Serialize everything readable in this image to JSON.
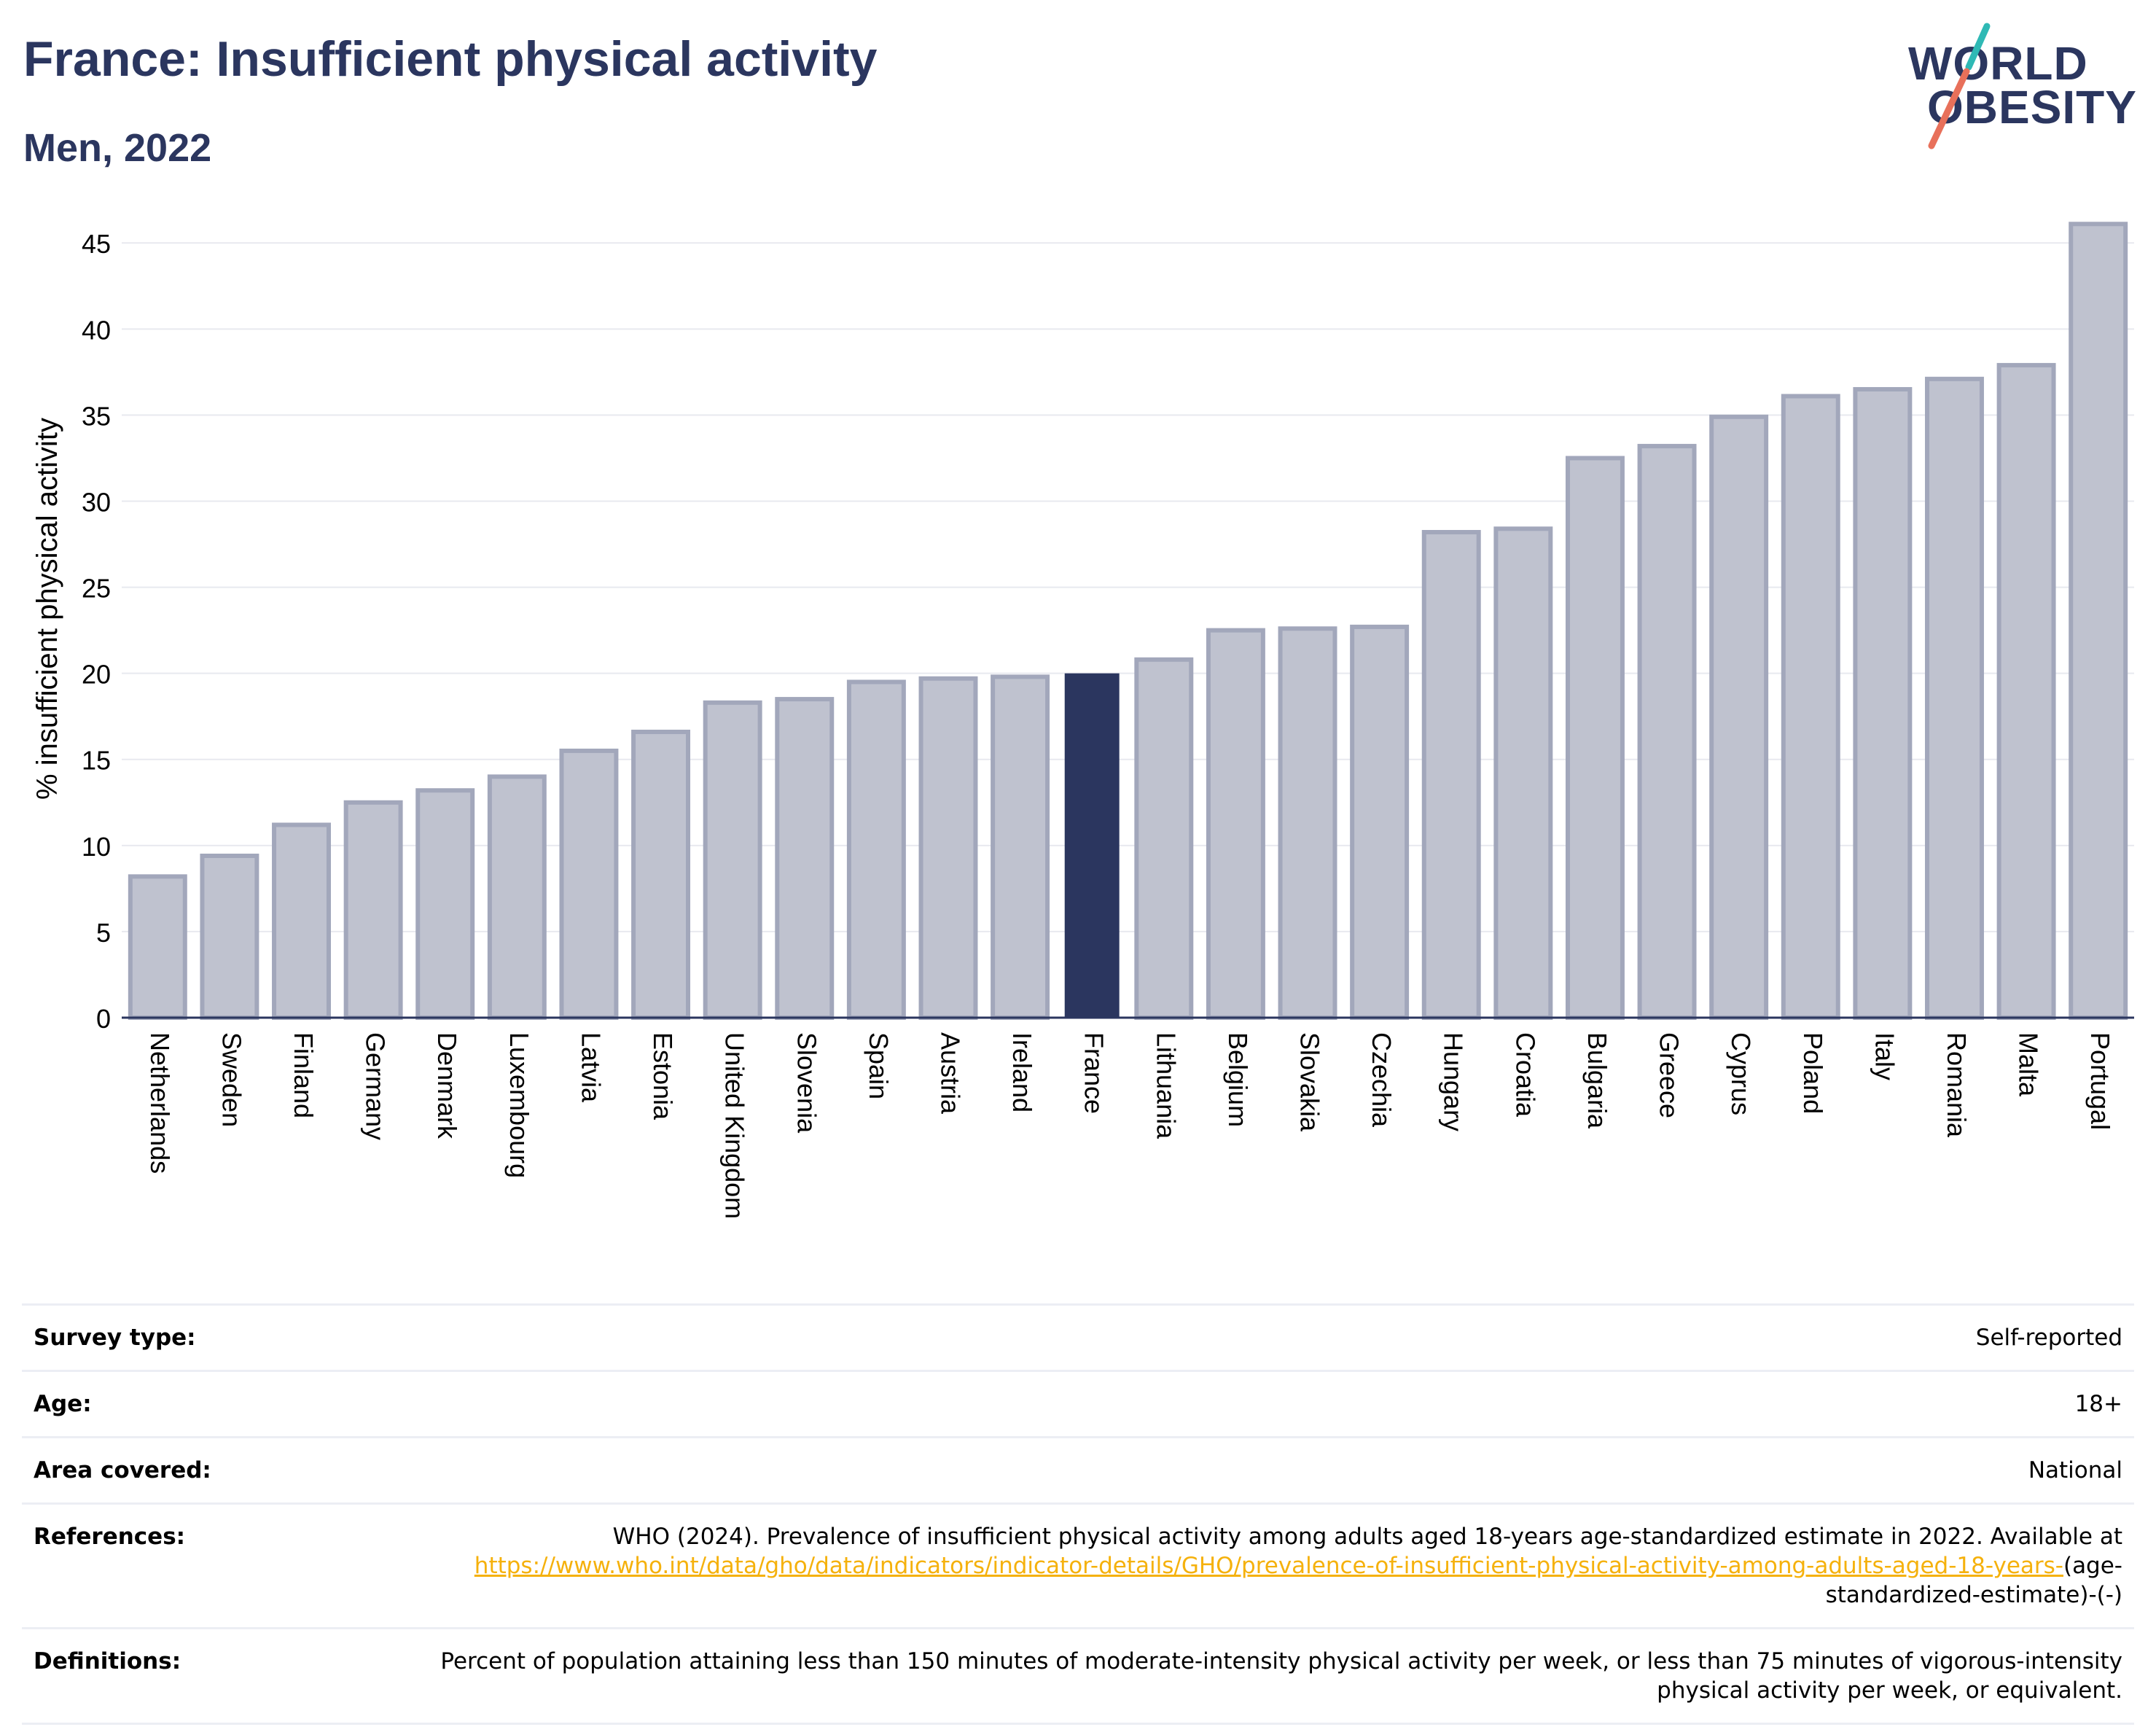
{
  "header": {
    "title": "France: Insufficient physical activity",
    "subtitle": "Men, 2022"
  },
  "logo": {
    "line1": "WORLD",
    "line2": "OBESITY",
    "colors": {
      "text": "#2b365f",
      "slash_top": "#2fb9b5",
      "slash_bottom": "#e8705a"
    }
  },
  "chart_data": {
    "type": "bar",
    "ylabel": "% insufficient physical activity",
    "xlabel": "",
    "ylim": [
      0,
      47
    ],
    "yticks": [
      0,
      5,
      10,
      15,
      20,
      25,
      30,
      35,
      40,
      45
    ],
    "grid": true,
    "highlight": "France",
    "colors": {
      "default": "#bfc2cf",
      "default_edge": "#a2a7bb",
      "highlight": "#2b365f",
      "axis": "#2b365f"
    },
    "categories": [
      "Netherlands",
      "Sweden",
      "Finland",
      "Germany",
      "Denmark",
      "Luxembourg",
      "Latvia",
      "Estonia",
      "United Kingdom",
      "Slovenia",
      "Spain",
      "Austria",
      "Ireland",
      "France",
      "Lithuania",
      "Belgium",
      "Slovakia",
      "Czechia",
      "Hungary",
      "Croatia",
      "Bulgaria",
      "Greece",
      "Cyprus",
      "Poland",
      "Italy",
      "Romania",
      "Malta",
      "Portugal"
    ],
    "values": [
      8.2,
      9.4,
      11.2,
      12.5,
      13.2,
      14.0,
      15.5,
      16.6,
      18.3,
      18.5,
      19.5,
      19.7,
      19.8,
      20.0,
      20.8,
      22.5,
      22.6,
      22.7,
      28.2,
      28.4,
      32.5,
      33.2,
      34.9,
      36.1,
      36.5,
      37.1,
      37.9,
      46.1
    ]
  },
  "info": {
    "survey_type": {
      "label": "Survey type:",
      "value": "Self-reported"
    },
    "age": {
      "label": "Age:",
      "value": "18+"
    },
    "area": {
      "label": "Area covered:",
      "value": "National"
    },
    "references": {
      "label": "References:",
      "text": "WHO (2024). Prevalence of insufficient physical activity among adults aged 18-years age-standardized estimate in 2022. Available at",
      "link": "https://www.who.int/data/gho/data/indicators/indicator-details/GHO/prevalence-of-insufficient-physical-activity-among-adults-aged-18-years-",
      "suffix": "(age-standardized-estimate)-(-)"
    },
    "definitions": {
      "label": "Definitions:",
      "value": "Percent of population attaining less than 150 minutes of moderate-intensity physical activity per week, or less than 75 minutes of vigorous-intensity physical activity per week, or equivalent."
    }
  }
}
